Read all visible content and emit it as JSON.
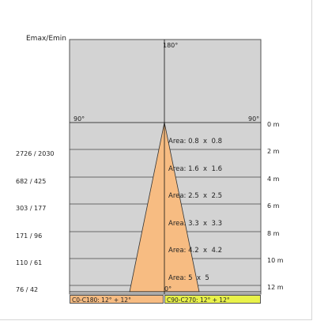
{
  "y_axis_title": "Emax/Emin",
  "angles": {
    "top": "180°",
    "left": "90°",
    "right": "90°",
    "bottom": "0°"
  },
  "rows": [
    {
      "lux": "",
      "distance": "0 m",
      "area": "Area: 0.8  x  0.8"
    },
    {
      "lux": "2726 / 2030",
      "distance": "2 m",
      "area": "Area: 1.6  x  1.6"
    },
    {
      "lux": "682 / 425",
      "distance": "4 m",
      "area": "Area: 2.5  x  2.5"
    },
    {
      "lux": "303 / 177",
      "distance": "6 m",
      "area": "Area: 3.3  x  3.3"
    },
    {
      "lux": "171 / 96",
      "distance": "8 m",
      "area": "Area: 4.2  x  4.2"
    },
    {
      "lux": "110 / 61",
      "distance": "10 m",
      "area": "Area: 5  x  5"
    },
    {
      "lux": "76 / 42",
      "distance": "12 m",
      "area": ""
    }
  ],
  "legend": {
    "c0": "C0-C180: 12° + 12°",
    "c90": "C90-C270: 12° + 12°"
  },
  "colors": {
    "background": "#d3d3d3",
    "cone": "#f7bc82",
    "legend_c0": "#f7bc82",
    "legend_c90": "#e9f24a"
  }
}
